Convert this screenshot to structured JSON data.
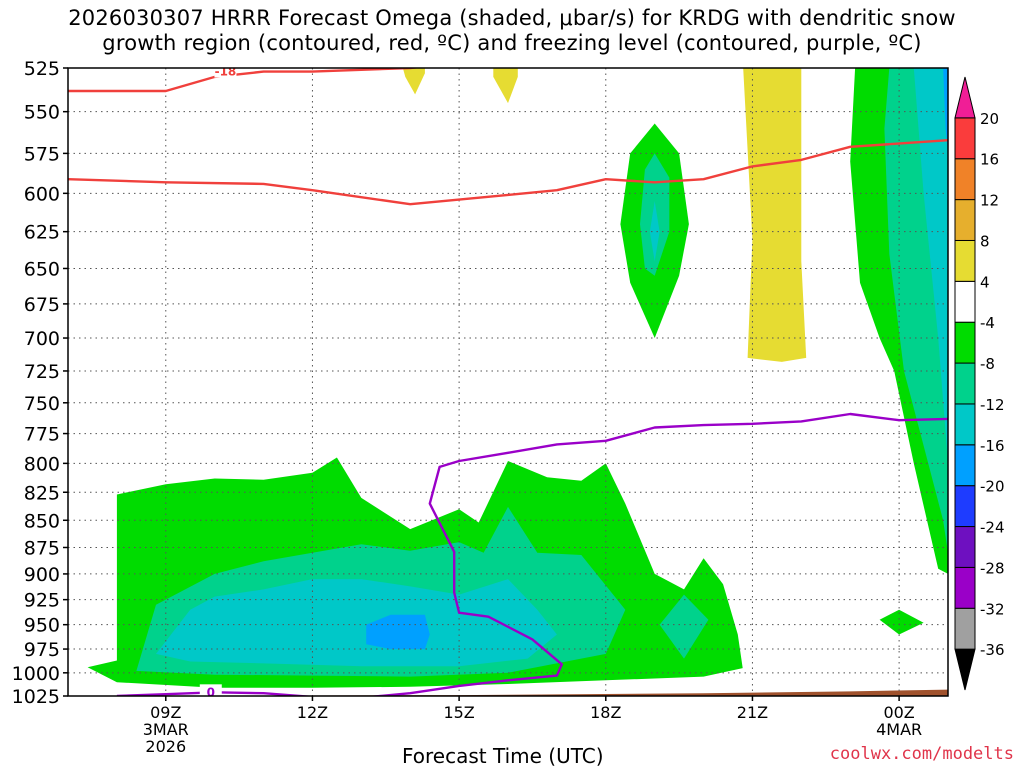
{
  "title_line1": "2026030307 HRRR Forecast Omega (shaded, μbar/s) for KRDG with dendritic snow",
  "title_line2": "growth region (contoured, red, ºC) and freezing level (contoured, purple, ºC)",
  "x_axis_title": "Forecast Time (UTC)",
  "credit": "coolwx.com/modelts",
  "chart_data": {
    "type": "heatmap",
    "title": "2026030307 HRRR Forecast Omega (shaded, μbar/s) for KRDG with dendritic snow growth region (contoured, red, ºC) and freezing level (contoured, purple, ºC)",
    "xlabel": "Forecast Time (UTC)",
    "ylabel": "",
    "x_range_hours": [
      7,
      25
    ],
    "y_range_hPa": [
      1025,
      525
    ],
    "y_scale": "log-pressure",
    "grid": true,
    "y_ticks": [
      525,
      550,
      575,
      600,
      625,
      650,
      675,
      700,
      725,
      750,
      775,
      800,
      825,
      850,
      875,
      900,
      925,
      950,
      975,
      1000,
      1025
    ],
    "x_ticks": [
      {
        "hour": 9,
        "label": "09Z",
        "sub1": "3MAR",
        "sub2": "2026"
      },
      {
        "hour": 12,
        "label": "12Z",
        "sub1": "",
        "sub2": ""
      },
      {
        "hour": 15,
        "label": "15Z",
        "sub1": "",
        "sub2": ""
      },
      {
        "hour": 18,
        "label": "18Z",
        "sub1": "",
        "sub2": ""
      },
      {
        "hour": 21,
        "label": "21Z",
        "sub1": "",
        "sub2": ""
      },
      {
        "hour": 24,
        "label": "00Z",
        "sub1": "4MAR",
        "sub2": ""
      }
    ],
    "colorbar": {
      "levels": [
        -36,
        -32,
        -28,
        -24,
        -20,
        -16,
        -12,
        -8,
        -4,
        4,
        8,
        12,
        16,
        20
      ],
      "colors": [
        "#000000",
        "#a0a0a0",
        "#9a00c8",
        "#6e10c0",
        "#1e3cff",
        "#00a0ff",
        "#00c8c8",
        "#00d28c",
        "#00dc00",
        "#ffffff",
        "#e6dc32",
        "#e6af2d",
        "#f08228",
        "#fa3c3c",
        "#f01e96"
      ],
      "tick_labels": [
        "20",
        "16",
        "12",
        "8",
        "4",
        "-4",
        "-8",
        "-12",
        "-16",
        "-20",
        "-24",
        "-28",
        "-32",
        "-36"
      ]
    },
    "omega_regions": [
      {
        "value_class": "-8 to -4",
        "color": "#00dc00",
        "desc": "low-level lift 07Z-20Z, 825-1000 hPa"
      },
      {
        "value_class": "-12 to -8",
        "color": "#00d28c"
      },
      {
        "value_class": "-16 to -12",
        "color": "#00c8c8"
      },
      {
        "value_class": "-20 to -16",
        "color": "#00a0ff"
      },
      {
        "value_class": "4 to 8",
        "color": "#e6dc32",
        "desc": "weak sinking near 21Z-22Z aloft"
      }
    ],
    "series": [
      {
        "name": "-18",
        "color": "#f0403c",
        "points": [
          [
            7,
            538
          ],
          [
            9,
            538
          ],
          [
            10,
            530
          ],
          [
            11,
            527
          ],
          [
            12,
            527
          ],
          [
            14,
            525
          ],
          [
            15,
            522
          ],
          [
            18,
            524
          ]
        ]
      },
      {
        "name": "",
        "color": "#f0403c",
        "points": [
          [
            7,
            591
          ],
          [
            9,
            593
          ],
          [
            11,
            594
          ],
          [
            12,
            598
          ],
          [
            14,
            607
          ],
          [
            16,
            601
          ],
          [
            17,
            598
          ],
          [
            18,
            591
          ],
          [
            19,
            593
          ],
          [
            20,
            591
          ],
          [
            21,
            583
          ],
          [
            22,
            579
          ],
          [
            23,
            571
          ],
          [
            25,
            567
          ]
        ]
      },
      {
        "name": "0",
        "color": "#9a00c8",
        "points": [
          [
            8,
            1025
          ],
          [
            9,
            1023
          ],
          [
            10,
            1021
          ],
          [
            11,
            1022
          ],
          [
            12,
            1026
          ],
          [
            13,
            1027
          ],
          [
            14,
            1022
          ],
          [
            15,
            1014
          ],
          [
            16,
            1008
          ],
          [
            17,
            1003
          ],
          [
            17.1,
            991
          ],
          [
            16.5,
            965
          ],
          [
            15.6,
            942
          ],
          [
            15,
            938
          ],
          [
            14.9,
            918
          ],
          [
            14.9,
            879
          ],
          [
            14.4,
            835
          ],
          [
            14.6,
            803
          ],
          [
            15,
            798
          ],
          [
            16,
            791
          ],
          [
            17,
            784
          ],
          [
            18,
            781
          ],
          [
            19,
            770
          ],
          [
            20,
            768
          ],
          [
            21,
            767
          ],
          [
            22,
            765
          ],
          [
            23,
            759
          ],
          [
            24,
            764
          ],
          [
            25,
            763
          ]
        ]
      }
    ],
    "terrain": {
      "color": "#a0522d",
      "surface_hPa_left": 1025,
      "surface_hPa_right": 1018
    }
  }
}
